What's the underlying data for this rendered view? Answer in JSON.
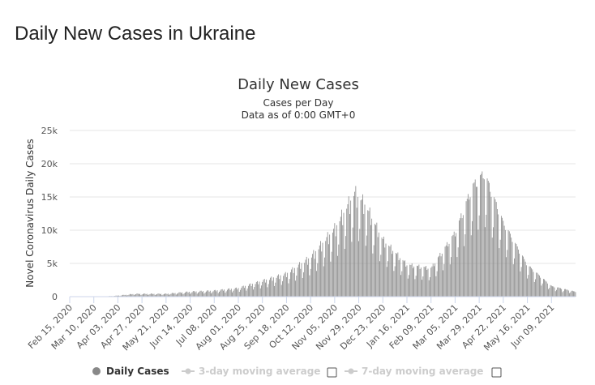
{
  "page": {
    "heading": "Daily New Cases in Ukraine"
  },
  "chart_data": {
    "type": "bar",
    "title": "Daily New Cases",
    "subtitle": "Cases per Day",
    "subtitle2": "Data as of 0:00 GMT+0",
    "ylabel": "Novel Coronavirus Daily Cases",
    "xlabel": "",
    "ylim": [
      0,
      25000
    ],
    "yticks": [
      0,
      5000,
      10000,
      15000,
      20000,
      25000
    ],
    "ytick_labels": [
      "0",
      "5k",
      "10k",
      "15k",
      "20k",
      "25k"
    ],
    "x_range": [
      "2020-02-15",
      "2021-07-03"
    ],
    "xtick_labels": [
      "Feb 15, 2020",
      "Mar 10, 2020",
      "Apr 03, 2020",
      "Apr 27, 2020",
      "May 21, 2020",
      "Jun 14, 2020",
      "Jul 08, 2020",
      "Aug 01, 2020",
      "Aug 25, 2020",
      "Sep 18, 2020",
      "Oct 12, 2020",
      "Nov 05, 2020",
      "Nov 29, 2020",
      "Dec 23, 2020",
      "Jan 16, 2021",
      "Feb 09, 2021",
      "Mar 05, 2021",
      "Mar 29, 2021",
      "Apr 22, 2021",
      "May 16, 2021",
      "Jun 09, 2021"
    ],
    "grid": true,
    "bar_color": "#888888",
    "series": [
      {
        "name": "Daily Cases",
        "key_points": [
          {
            "date": "2020-02-15",
            "value": 0
          },
          {
            "date": "2020-03-20",
            "value": 20
          },
          {
            "date": "2020-04-03",
            "value": 150
          },
          {
            "date": "2020-04-20",
            "value": 400
          },
          {
            "date": "2020-05-21",
            "value": 400
          },
          {
            "date": "2020-06-14",
            "value": 700
          },
          {
            "date": "2020-07-08",
            "value": 850
          },
          {
            "date": "2020-08-01",
            "value": 1200
          },
          {
            "date": "2020-08-25",
            "value": 2200
          },
          {
            "date": "2020-09-18",
            "value": 3200
          },
          {
            "date": "2020-10-12",
            "value": 5500
          },
          {
            "date": "2020-11-05",
            "value": 9500
          },
          {
            "date": "2020-11-25",
            "value": 14500
          },
          {
            "date": "2020-12-05",
            "value": 13000
          },
          {
            "date": "2020-12-23",
            "value": 8000
          },
          {
            "date": "2021-01-16",
            "value": 4500
          },
          {
            "date": "2021-02-09",
            "value": 4000
          },
          {
            "date": "2021-03-05",
            "value": 9000
          },
          {
            "date": "2021-03-22",
            "value": 15500
          },
          {
            "date": "2021-04-03",
            "value": 17500
          },
          {
            "date": "2021-04-22",
            "value": 10500
          },
          {
            "date": "2021-05-16",
            "value": 4500
          },
          {
            "date": "2021-06-09",
            "value": 1500
          },
          {
            "date": "2021-07-03",
            "value": 700
          }
        ]
      }
    ],
    "legend": [
      {
        "label": "Daily Cases",
        "color": "#888888",
        "active": true
      },
      {
        "label": "3-day moving average",
        "color": "#cccccc",
        "active": false
      },
      {
        "label": "7-day moving average",
        "color": "#cccccc",
        "active": false
      }
    ]
  }
}
